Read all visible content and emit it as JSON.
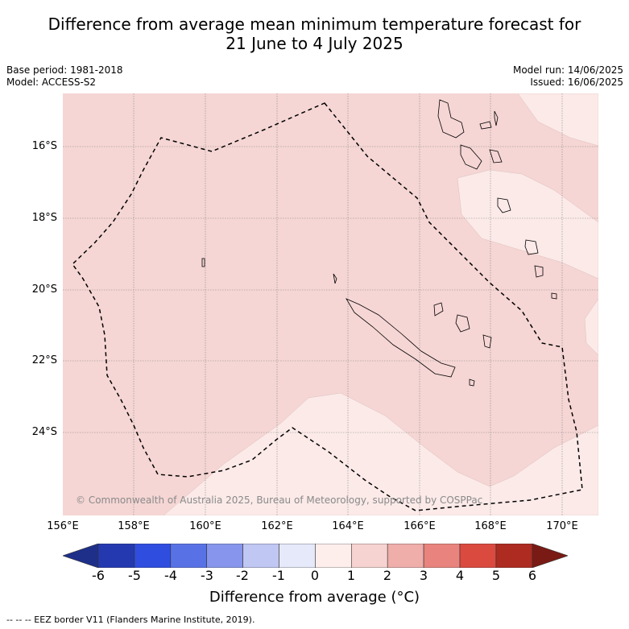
{
  "header": {
    "title_line1": "Difference from average mean minimum temperature forecast for",
    "title_line2": "21 June to 4 July 2025",
    "base_period": "Base period: 1981-2018",
    "model": "Model: ACCESS-S2",
    "model_run": "Model run: 14/06/2025",
    "issued": "Issued: 16/06/2025"
  },
  "map": {
    "lat_labels": [
      "16°S",
      "18°S",
      "20°S",
      "22°S",
      "24°S"
    ],
    "lon_labels": [
      "156°E",
      "158°E",
      "160°E",
      "162°E",
      "164°E",
      "166°E",
      "168°E",
      "170°E"
    ],
    "copyright": "© Commonwealth of Australia 2025, Bureau of Meteorology, supported by COSPPac",
    "colors": {
      "anomaly_1_2": "#f5d6d4",
      "anomaly_0_1": "#fbeae8",
      "border": "#000000",
      "grid": "#888888"
    }
  },
  "legend": {
    "ticks": [
      "-6",
      "-5",
      "-4",
      "-3",
      "-2",
      "-1",
      "0",
      "1",
      "2",
      "3",
      "4",
      "5",
      "6"
    ],
    "colors": [
      "#1e2f8a",
      "#2439b0",
      "#2f4ee0",
      "#5872e6",
      "#8796ec",
      "#c1c7f3",
      "#e6e9fa",
      "#fdeeec",
      "#f6d3d0",
      "#efaeaa",
      "#e8847d",
      "#db4a3f",
      "#ad2b20",
      "#7a1a14"
    ],
    "label": "Difference from average (°C)",
    "footnote": "--  --  -- EEZ border V11 (Flanders Marine Institute, 2019)."
  }
}
